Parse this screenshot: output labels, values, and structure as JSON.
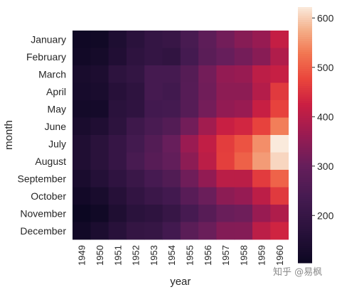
{
  "chart_data": {
    "type": "heatmap",
    "xlabel": "year",
    "ylabel": "month",
    "x_categories": [
      "1949",
      "1950",
      "1951",
      "1952",
      "1953",
      "1954",
      "1955",
      "1956",
      "1957",
      "1958",
      "1959",
      "1960"
    ],
    "y_categories": [
      "January",
      "February",
      "March",
      "April",
      "May",
      "June",
      "July",
      "August",
      "September",
      "October",
      "November",
      "December"
    ],
    "values": [
      [
        112,
        115,
        145,
        171,
        196,
        204,
        242,
        284,
        315,
        340,
        360,
        417
      ],
      [
        118,
        126,
        150,
        180,
        196,
        188,
        233,
        277,
        301,
        318,
        342,
        391
      ],
      [
        132,
        141,
        178,
        193,
        236,
        235,
        267,
        317,
        356,
        362,
        406,
        419
      ],
      [
        129,
        135,
        163,
        181,
        235,
        227,
        269,
        313,
        348,
        348,
        396,
        461
      ],
      [
        121,
        125,
        172,
        183,
        229,
        234,
        270,
        318,
        355,
        363,
        420,
        472
      ],
      [
        135,
        149,
        178,
        218,
        243,
        264,
        315,
        374,
        422,
        435,
        472,
        535
      ],
      [
        148,
        170,
        199,
        230,
        264,
        302,
        364,
        413,
        465,
        491,
        548,
        622
      ],
      [
        148,
        170,
        199,
        242,
        272,
        293,
        347,
        405,
        467,
        505,
        559,
        606
      ],
      [
        136,
        158,
        184,
        209,
        237,
        259,
        312,
        355,
        404,
        404,
        463,
        508
      ],
      [
        119,
        133,
        162,
        191,
        211,
        229,
        274,
        306,
        347,
        359,
        407,
        461
      ],
      [
        104,
        114,
        146,
        172,
        180,
        203,
        237,
        271,
        305,
        310,
        362,
        390
      ],
      [
        118,
        140,
        166,
        194,
        201,
        229,
        278,
        306,
        336,
        337,
        405,
        432
      ]
    ],
    "colorbar": {
      "ticks": [
        200,
        300,
        400,
        500,
        600
      ],
      "range": [
        104,
        622
      ]
    }
  },
  "watermark": "知乎 @易枫"
}
